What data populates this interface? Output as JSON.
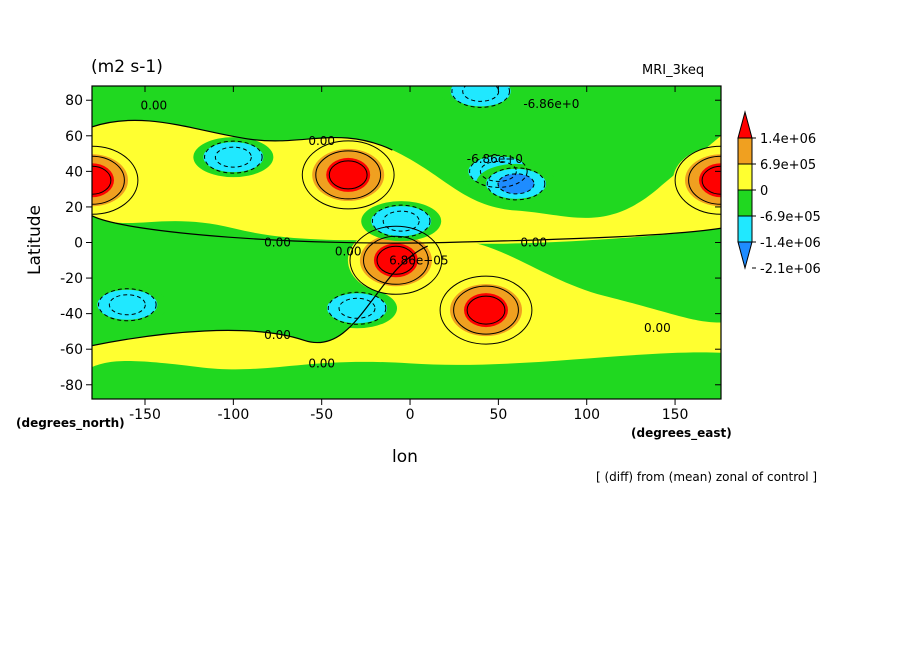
{
  "chart_data": {
    "type": "heatmap",
    "title": "(m2 s-1)",
    "model_label": "MRI_3keq",
    "xlabel": "lon",
    "ylabel": "Latitude",
    "x_units": "(degrees_east)",
    "y_units": "(degrees_north)",
    "xlim": [
      -180,
      176
    ],
    "ylim": [
      -88,
      88
    ],
    "x_ticks": [
      "-150",
      "-100",
      "-50",
      "0",
      "50",
      "100",
      "150"
    ],
    "x_tick_values": [
      -150,
      -100,
      -50,
      0,
      50,
      100,
      150
    ],
    "y_ticks": [
      "80",
      "60",
      "40",
      "20",
      "0",
      "-20",
      "-40",
      "-60",
      "-80"
    ],
    "y_tick_values": [
      80,
      60,
      40,
      20,
      0,
      -20,
      -40,
      -60,
      -80
    ],
    "footer": "[ (diff) from (mean) zonal of control ]",
    "colorbar": {
      "labels": [
        "1.4e+06",
        "6.9e+05",
        "0",
        "-6.9e+05",
        "-1.4e+06",
        "-2.1e+06"
      ],
      "colors": [
        "#ff0000",
        "#f0a020",
        "#ffff30",
        "#20d820",
        "#20e8ff",
        "#1e8cff"
      ]
    },
    "contour_labels": [
      {
        "text": "0.00",
        "lon": -145,
        "lat": 77
      },
      {
        "text": "0.00",
        "lon": -50,
        "lat": 57
      },
      {
        "text": "0.00",
        "lon": -75,
        "lat": 0
      },
      {
        "text": "0.00",
        "lon": -35,
        "lat": -5
      },
      {
        "text": "0.00",
        "lon": 70,
        "lat": 0
      },
      {
        "text": "0.00",
        "lon": -75,
        "lat": -52
      },
      {
        "text": "0.00",
        "lon": -50,
        "lat": -68
      },
      {
        "text": "0.00",
        "lon": 140,
        "lat": -48
      },
      {
        "text": "-6.86e+0",
        "lon": 80,
        "lat": 78
      },
      {
        "text": "-6.86e+0",
        "lon": 48,
        "lat": 47
      },
      {
        "text": "6.86e+05",
        "lon": 5,
        "lat": -10
      }
    ],
    "regions": [
      {
        "level": 0,
        "type": "band",
        "lat_range": [
          -62,
          72
        ],
        "note": "main yellow band"
      },
      {
        "level": 1,
        "center": [
          -35,
          38
        ],
        "note": "red max north atlantic"
      },
      {
        "level": 1,
        "center": [
          -180,
          35
        ],
        "note": "red max dateline north"
      },
      {
        "level": 1,
        "center": [
          176,
          35
        ],
        "note": "red max dateline north east edge"
      },
      {
        "level": 1,
        "center": [
          43,
          -38
        ],
        "note": "red max south indian"
      },
      {
        "level": 1,
        "center": [
          -8,
          -10
        ],
        "note": "red small tropical"
      },
      {
        "level": -1,
        "center": [
          -5,
          12
        ],
        "note": "cyan tropical"
      },
      {
        "level": -1,
        "center": [
          50,
          40
        ],
        "note": "cyan central asia"
      },
      {
        "level": -2,
        "center": [
          60,
          33
        ],
        "note": "blue min central asia"
      },
      {
        "level": -1,
        "center": [
          -100,
          48
        ],
        "note": "cyan north pacific"
      },
      {
        "level": -1,
        "center": [
          -30,
          -37
        ],
        "note": "cyan south atlantic"
      },
      {
        "level": -1,
        "center": [
          -160,
          -35
        ],
        "note": "cyan south pacific"
      },
      {
        "level": -1,
        "center": [
          40,
          85
        ],
        "note": "cyan arctic"
      }
    ]
  }
}
